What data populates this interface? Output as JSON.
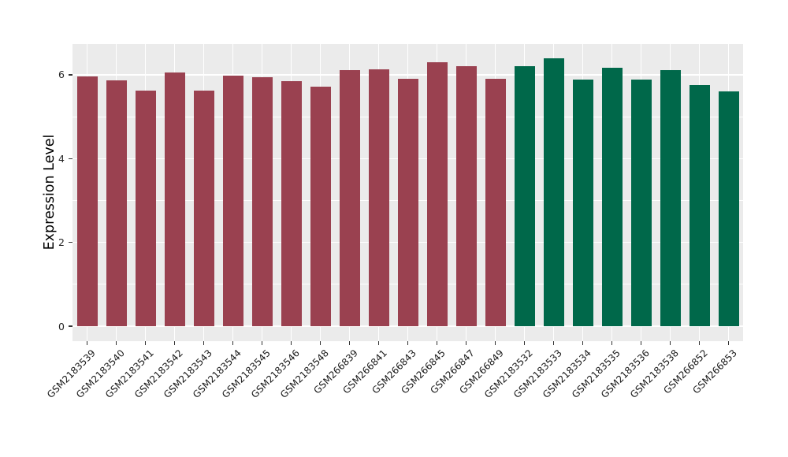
{
  "chart_data": {
    "type": "bar",
    "title": "",
    "xlabel": "",
    "ylabel": "Expression Level",
    "categories": [
      "GSM2183539",
      "GSM2183540",
      "GSM2183541",
      "GSM2183542",
      "GSM2183543",
      "GSM2183544",
      "GSM2183545",
      "GSM2183546",
      "GSM2183548",
      "GSM266839",
      "GSM266841",
      "GSM266843",
      "GSM266845",
      "GSM266847",
      "GSM266849",
      "GSM2183532",
      "GSM2183533",
      "GSM2183534",
      "GSM2183535",
      "GSM2183536",
      "GSM2183538",
      "GSM266852",
      "GSM266853"
    ],
    "values": [
      5.97,
      5.86,
      5.63,
      6.05,
      5.62,
      5.99,
      5.94,
      5.84,
      5.72,
      6.11,
      6.13,
      5.91,
      6.3,
      6.21,
      5.91,
      6.21,
      6.4,
      5.88,
      6.17,
      5.88,
      6.12,
      5.76,
      5.61
    ],
    "groups": [
      "group1",
      "group1",
      "group1",
      "group1",
      "group1",
      "group1",
      "group1",
      "group1",
      "group1",
      "group1",
      "group1",
      "group1",
      "group1",
      "group1",
      "group1",
      "group2",
      "group2",
      "group2",
      "group2",
      "group2",
      "group2",
      "group2",
      "group2"
    ],
    "group_colors": {
      "group1": "#9A4150",
      "group2": "#00684A"
    },
    "yticks": [
      0,
      2,
      4,
      6
    ],
    "yticks_minor": [
      1,
      3,
      5
    ],
    "ylim": [
      0,
      6.73
    ],
    "legend": null,
    "grid": "white major+minor horizontal lines, white vertical line at each category",
    "style": {
      "panel_bg": "#EBEBEB",
      "grid_color": "#FFFFFF",
      "tick_mark_color": "#333333",
      "tick_label_color": "#262626",
      "x_label_color": "#1a1a1a",
      "axis_title_color": "#000000",
      "x_label_rotation_deg": 45
    }
  }
}
